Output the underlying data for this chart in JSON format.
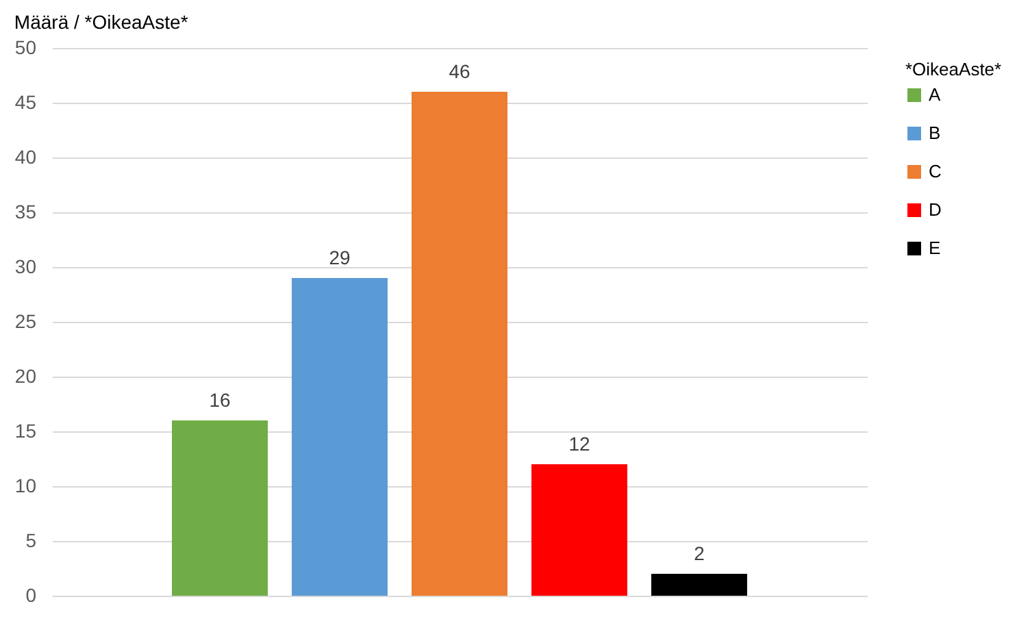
{
  "chart_data": {
    "type": "bar",
    "title": "Määrä  / *OikeaAste*",
    "legend_title": "*OikeaAste*",
    "categories": [
      null
    ],
    "series": [
      {
        "name": "A",
        "color": "#70ad47",
        "values": [
          16
        ]
      },
      {
        "name": "B",
        "color": "#5b9bd5",
        "values": [
          29
        ]
      },
      {
        "name": "C",
        "color": "#ed7d31",
        "values": [
          46
        ]
      },
      {
        "name": "D",
        "color": "#ff0000",
        "values": [
          12
        ]
      },
      {
        "name": "E",
        "color": "#000000",
        "values": [
          2
        ]
      }
    ],
    "ylim": [
      0,
      50
    ],
    "yticks": [
      0,
      5,
      10,
      15,
      20,
      25,
      30,
      35,
      40,
      45,
      50
    ],
    "grid": "y",
    "legend": "right",
    "data_labels": true,
    "tick_labels": "y"
  }
}
